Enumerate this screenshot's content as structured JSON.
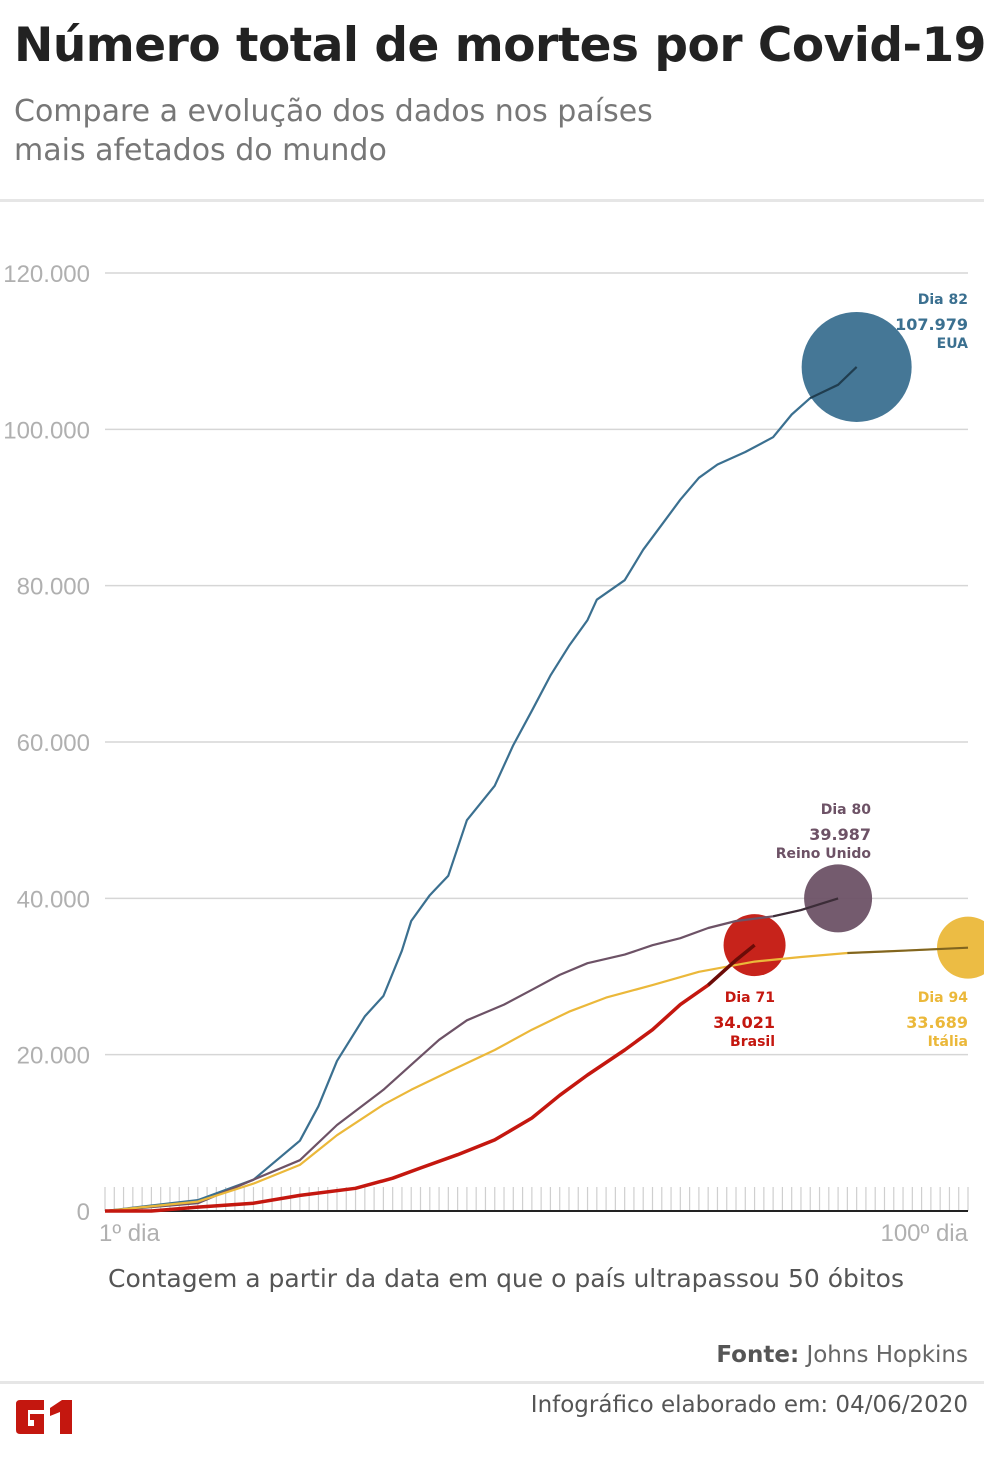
{
  "header": {
    "title": "Número total de mortes por Covid-19",
    "subtitle": "Compare a evolução dos dados nos países mais afetados do mundo"
  },
  "footer": {
    "fonte_label": "Fonte:",
    "fonte_value": "Johns Hopkins",
    "infographic": "Infográfico elaborado em: 04/06/2020",
    "logo": "G1"
  },
  "chart_data": {
    "type": "line",
    "title": "Número total de mortes por Covid-19",
    "xlabel": "Contagem a partir da data em que o país ultrapassou 50 óbitos",
    "ylabel": "",
    "x_tick_labels": [
      "1º dia",
      "100º dia"
    ],
    "xlim": [
      1,
      94
    ],
    "ylim": [
      0,
      120000
    ],
    "y_ticks": [
      0,
      20000,
      40000,
      60000,
      80000,
      100000,
      120000
    ],
    "y_tick_labels": [
      "0",
      "20.000",
      "40.000",
      "60.000",
      "80.000",
      "100.000",
      "120.000"
    ],
    "grid": true,
    "series": [
      {
        "name": "EUA",
        "color": "#3b7090",
        "end_day_label": "Dia 82",
        "end_value_label": "107.979",
        "points": [
          [
            1,
            0
          ],
          [
            11,
            1400
          ],
          [
            17,
            4000
          ],
          [
            22,
            9000
          ],
          [
            24,
            13400
          ],
          [
            26,
            19200
          ],
          [
            29,
            24900
          ],
          [
            31,
            27500
          ],
          [
            33,
            33300
          ],
          [
            34,
            37100
          ],
          [
            36,
            40400
          ],
          [
            38,
            42900
          ],
          [
            40,
            50000
          ],
          [
            43,
            54400
          ],
          [
            45,
            59600
          ],
          [
            47,
            64000
          ],
          [
            49,
            68500
          ],
          [
            51,
            72300
          ],
          [
            53,
            75600
          ],
          [
            54,
            78200
          ],
          [
            57,
            80700
          ],
          [
            59,
            84600
          ],
          [
            61,
            87800
          ],
          [
            63,
            91000
          ],
          [
            65,
            93800
          ],
          [
            67,
            95500
          ],
          [
            70,
            97100
          ],
          [
            73,
            99000
          ],
          [
            75,
            101900
          ],
          [
            77,
            104000
          ],
          [
            80,
            105700
          ],
          [
            82,
            107979
          ]
        ]
      },
      {
        "name": "Reino Unido",
        "color": "#6d5266",
        "end_day_label": "Dia 80",
        "end_value_label": "39.987",
        "points": [
          [
            1,
            0
          ],
          [
            11,
            1000
          ],
          [
            17,
            4000
          ],
          [
            22,
            6500
          ],
          [
            26,
            11000
          ],
          [
            31,
            15500
          ],
          [
            34,
            18700
          ],
          [
            37,
            21900
          ],
          [
            40,
            24400
          ],
          [
            44,
            26400
          ],
          [
            47,
            28300
          ],
          [
            50,
            30200
          ],
          [
            53,
            31700
          ],
          [
            57,
            32800
          ],
          [
            60,
            34000
          ],
          [
            63,
            34900
          ],
          [
            66,
            36200
          ],
          [
            69,
            37100
          ],
          [
            73,
            37700
          ],
          [
            76,
            38500
          ],
          [
            80,
            39987
          ]
        ]
      },
      {
        "name": "Itália",
        "color": "#ebb83a",
        "end_day_label": "Dia 94",
        "end_value_label": "33.689",
        "points": [
          [
            1,
            0
          ],
          [
            11,
            1200
          ],
          [
            17,
            3500
          ],
          [
            22,
            5900
          ],
          [
            26,
            9700
          ],
          [
            31,
            13600
          ],
          [
            34,
            15500
          ],
          [
            38,
            17800
          ],
          [
            43,
            20600
          ],
          [
            47,
            23200
          ],
          [
            51,
            25500
          ],
          [
            55,
            27300
          ],
          [
            60,
            28900
          ],
          [
            65,
            30600
          ],
          [
            71,
            31900
          ],
          [
            76,
            32500
          ],
          [
            81,
            33000
          ],
          [
            87,
            33300
          ],
          [
            94,
            33689
          ]
        ]
      },
      {
        "name": "Brasil",
        "color": "#c4170f",
        "end_day_label": "Dia 71",
        "end_value_label": "34.021",
        "points": [
          [
            1,
            0
          ],
          [
            6,
            0
          ],
          [
            11,
            500
          ],
          [
            17,
            1000
          ],
          [
            22,
            2000
          ],
          [
            28,
            2900
          ],
          [
            32,
            4200
          ],
          [
            35,
            5500
          ],
          [
            39,
            7200
          ],
          [
            43,
            9100
          ],
          [
            47,
            11900
          ],
          [
            50,
            14800
          ],
          [
            53,
            17400
          ],
          [
            57,
            20600
          ],
          [
            60,
            23200
          ],
          [
            63,
            26400
          ],
          [
            66,
            28900
          ],
          [
            69,
            32100
          ],
          [
            71,
            34021
          ]
        ]
      }
    ]
  }
}
